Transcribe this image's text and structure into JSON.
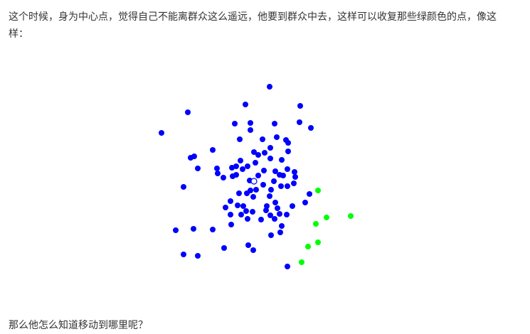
{
  "article": {
    "paragraph_1": "这个时候，身为中心点，觉得自己不能离群众这么遥远，他要到群众中去，这样可以收复那些绿颜色的点，像这样：",
    "paragraph_2": "那么他怎么知道移动到哪里呢？"
  },
  "colors": {
    "text": "#333333",
    "blue_points": "#0000ff",
    "green_points": "#00ff00",
    "center_stroke": "#0000ff",
    "center_fill": "#ffffff"
  },
  "chart_data": {
    "type": "scatter",
    "title": "",
    "xlabel": "",
    "ylabel": "",
    "grid": false,
    "legend": "none",
    "xlim": [
      220,
      500
    ],
    "ylim": [
      115,
      385
    ],
    "y_axis_direction": "down",
    "center": {
      "x": 357,
      "y": 255
    },
    "series": [
      {
        "color": "#0000ff",
        "points": [
          [
            379,
            122
          ],
          [
            345,
            147
          ],
          [
            422,
            149
          ],
          [
            264,
            158
          ],
          [
            330,
            174
          ],
          [
            352,
            173
          ],
          [
            386,
            174
          ],
          [
            421,
            172
          ],
          [
            437,
            180
          ],
          [
            352,
            183
          ],
          [
            227,
            187
          ],
          [
            389,
            193
          ],
          [
            369,
            196
          ],
          [
            337,
            196
          ],
          [
            405,
            201
          ],
          [
            402,
            197
          ],
          [
            299,
            211
          ],
          [
            380,
            208
          ],
          [
            357,
            214
          ],
          [
            372,
            215
          ],
          [
            405,
            213
          ],
          [
            273,
            220
          ],
          [
            268,
            222
          ],
          [
            363,
            218
          ],
          [
            380,
            223
          ],
          [
            338,
            226
          ],
          [
            396,
            225
          ],
          [
            359,
            229
          ],
          [
            332,
            234
          ],
          [
            348,
            234
          ],
          [
            305,
            237
          ],
          [
            326,
            236
          ],
          [
            341,
            238
          ],
          [
            278,
            237
          ],
          [
            371,
            240
          ],
          [
            387,
            241
          ],
          [
            404,
            238
          ],
          [
            414,
            242
          ],
          [
            306,
            244
          ],
          [
            332,
            246
          ],
          [
            314,
            250
          ],
          [
            327,
            248
          ],
          [
            363,
            247
          ],
          [
            393,
            246
          ],
          [
            398,
            247
          ],
          [
            415,
            249
          ],
          [
            351,
            254
          ],
          [
            385,
            255
          ],
          [
            370,
            260
          ],
          [
            395,
            262
          ],
          [
            413,
            258
          ],
          [
            258,
            263
          ],
          [
            352,
            268
          ],
          [
            360,
            267
          ],
          [
            347,
            272
          ],
          [
            336,
            272
          ],
          [
            381,
            267
          ],
          [
            404,
            262
          ],
          [
            435,
            273
          ],
          [
            379,
            276
          ],
          [
            356,
            277
          ],
          [
            324,
            283
          ],
          [
            317,
            292
          ],
          [
            342,
            290
          ],
          [
            334,
            289
          ],
          [
            429,
            285
          ],
          [
            387,
            285
          ],
          [
            375,
            290
          ],
          [
            411,
            290
          ],
          [
            346,
            297
          ],
          [
            390,
            293
          ],
          [
            374,
            296
          ],
          [
            393,
            301
          ],
          [
            324,
            302
          ],
          [
            339,
            302
          ],
          [
            355,
            298
          ],
          [
            380,
            303
          ],
          [
            403,
            302
          ],
          [
            325,
            316
          ],
          [
            348,
            308
          ],
          [
            367,
            309
          ],
          [
            386,
            308
          ],
          [
            247,
            324
          ],
          [
            272,
            322
          ],
          [
            299,
            323
          ],
          [
            396,
            318
          ],
          [
            381,
            331
          ],
          [
            394,
            327
          ],
          [
            349,
            345
          ],
          [
            315,
            349
          ],
          [
            356,
            352
          ],
          [
            258,
            358
          ],
          [
            278,
            360
          ],
          [
            404,
            375
          ]
        ]
      },
      {
        "color": "#00ff00",
        "points": [
          [
            447,
            268
          ],
          [
            493,
            304
          ],
          [
            459,
            306
          ],
          [
            444,
            315
          ],
          [
            447,
            341
          ],
          [
            433,
            347
          ],
          [
            424,
            369
          ]
        ]
      }
    ]
  }
}
